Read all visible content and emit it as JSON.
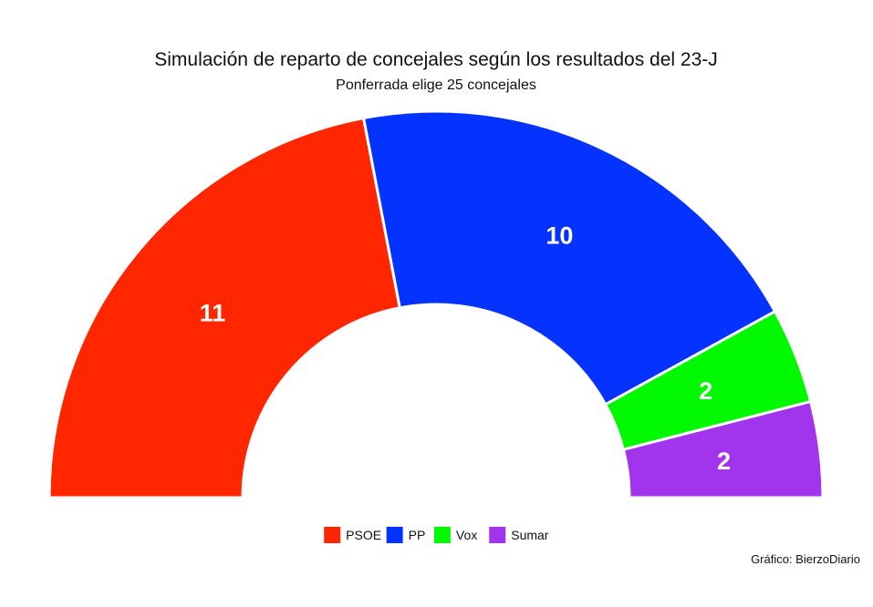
{
  "chart_data": {
    "type": "pie",
    "variant": "parliament-semicircle",
    "title": "Simulación de reparto de concejales según los resultados del 23-J",
    "subtitle": "Ponferrada elige 25 concejales",
    "total": 25,
    "series": [
      {
        "name": "PSOE",
        "value": 11,
        "color": "#ff2600"
      },
      {
        "name": "PP",
        "value": 10,
        "color": "#0433ff"
      },
      {
        "name": "Vox",
        "value": 2,
        "color": "#00f900"
      },
      {
        "name": "Sumar",
        "value": 2,
        "color": "#a334ed"
      }
    ],
    "legend_position": "bottom-center",
    "caption": "Gráfico: BierzoDiario"
  }
}
